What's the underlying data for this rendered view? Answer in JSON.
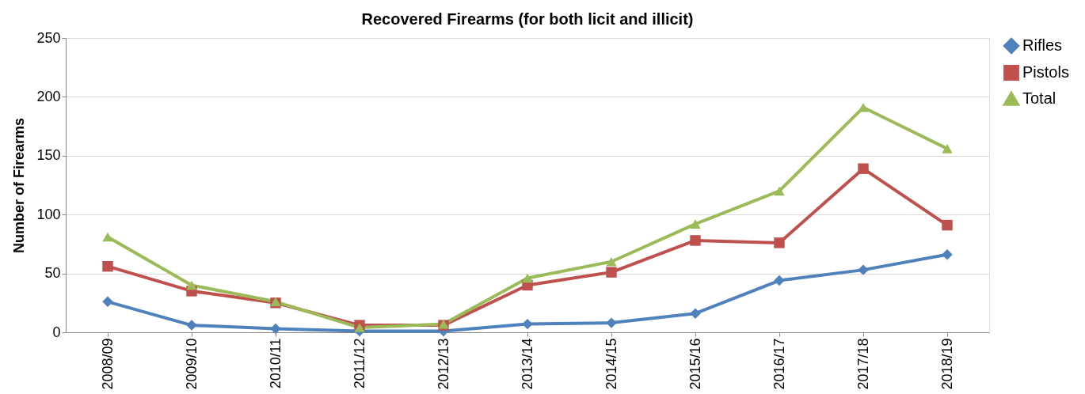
{
  "chart_data": {
    "type": "line",
    "title": "Recovered Firearms (for both licit and illicit)",
    "ylabel": "Number of Firearms",
    "categories": [
      "2008/09",
      "2009/10",
      "2010/11",
      "2011/12",
      "2012/13",
      "2013/14",
      "2014/15",
      "2015/16",
      "2016/17",
      "2017/18",
      "2018/19"
    ],
    "series": [
      {
        "name": "Rifles",
        "color": "#4f81bd",
        "marker": "diamond",
        "values": [
          26,
          6,
          3,
          1,
          1,
          7,
          8,
          16,
          44,
          53,
          66
        ]
      },
      {
        "name": "Pistols",
        "color": "#c0504d",
        "marker": "square",
        "values": [
          56,
          35,
          25,
          6,
          6,
          40,
          51,
          78,
          76,
          139,
          91
        ]
      },
      {
        "name": "Total",
        "color": "#9bbb59",
        "marker": "triangle",
        "values": [
          81,
          40,
          26,
          4,
          7,
          46,
          60,
          92,
          120,
          191,
          156
        ]
      }
    ],
    "ylim": [
      0,
      250
    ],
    "yticks": [
      0,
      50,
      100,
      150,
      200,
      250
    ],
    "grid": "y",
    "legend": "right",
    "line_style": "solid"
  }
}
